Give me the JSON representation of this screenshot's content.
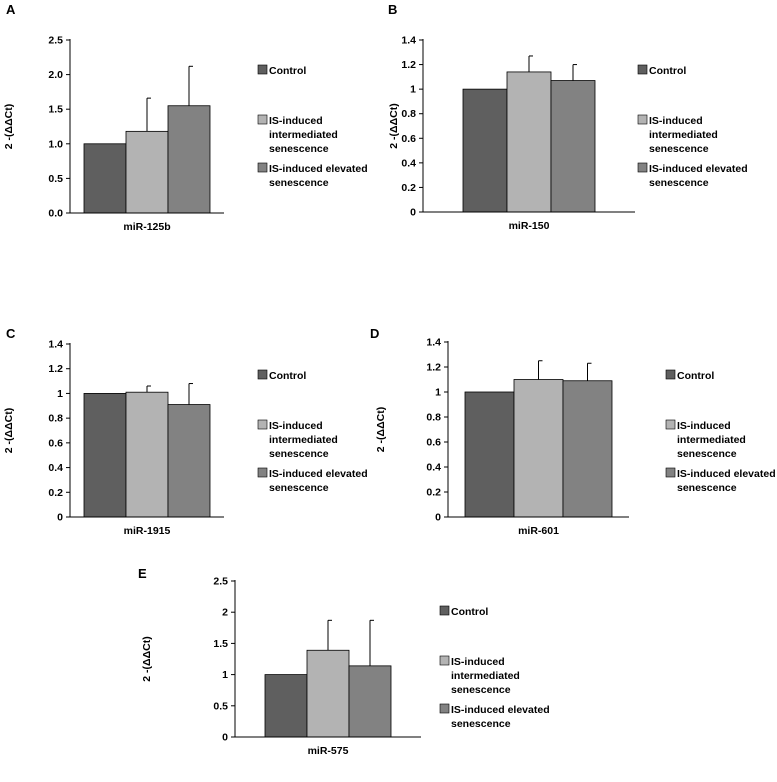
{
  "colors": {
    "control": "#5f5f5f",
    "intermediate": "#b3b3b3",
    "elevated": "#828282",
    "axis": "#000000",
    "bar_border": "#000000"
  },
  "legend": [
    {
      "key": "control",
      "lines": [
        "Control"
      ]
    },
    {
      "key": "intermediate",
      "lines": [
        " IS-induced",
        "intermediated",
        "senescence"
      ]
    },
    {
      "key": "elevated",
      "lines": [
        "IS-induced elevated",
        "senescence"
      ]
    }
  ],
  "chart_data": [
    {
      "panel": "A",
      "type": "bar",
      "category": "miR-125b",
      "ylabel": "2 -(ΔΔCt)",
      "ylim": [
        0,
        2.5
      ],
      "yticks": [
        "0.0",
        "0.5",
        "1.0",
        "1.5",
        "2.0",
        "2.5"
      ],
      "series": [
        {
          "name": "Control",
          "value": 1.0,
          "error": 0
        },
        {
          "name": "IS-induced intermediated senescence",
          "value": 1.18,
          "error": 0.48
        },
        {
          "name": "IS-induced elevated senescence",
          "value": 1.55,
          "error": 0.57
        }
      ]
    },
    {
      "panel": "B",
      "type": "bar",
      "category": "miR-150",
      "ylabel": "2 -(ΔΔCt)",
      "ylim": [
        0,
        1.4
      ],
      "yticks": [
        "0",
        "0.2",
        "0.4",
        "0.6",
        "0.8",
        "1",
        "1.2",
        "1.4"
      ],
      "series": [
        {
          "name": "Control",
          "value": 1.0,
          "error": 0
        },
        {
          "name": "IS-induced intermediated senescence",
          "value": 1.14,
          "error": 0.13
        },
        {
          "name": "IS-induced elevated senescence",
          "value": 1.07,
          "error": 0.13
        }
      ]
    },
    {
      "panel": "C",
      "type": "bar",
      "category": "miR-1915",
      "ylabel": "2 -(ΔΔCt)",
      "ylim": [
        0,
        1.4
      ],
      "yticks": [
        "0",
        "0.2",
        "0.4",
        "0.6",
        "0.8",
        "1",
        "1.2",
        "1.4"
      ],
      "series": [
        {
          "name": "Control",
          "value": 1.0,
          "error": 0
        },
        {
          "name": "IS-induced intermediated senescence",
          "value": 1.01,
          "error": 0.05
        },
        {
          "name": "IS-induced elevated senescence",
          "value": 0.91,
          "error": 0.17
        }
      ]
    },
    {
      "panel": "D",
      "type": "bar",
      "category": "miR-601",
      "ylabel": "2 -(ΔΔCt)",
      "ylim": [
        0,
        1.4
      ],
      "yticks": [
        "0",
        "0.2",
        "0.4",
        "0.6",
        "0.8",
        "1",
        "1.2",
        "1.4"
      ],
      "series": [
        {
          "name": "Control",
          "value": 1.0,
          "error": 0
        },
        {
          "name": "IS-induced intermediated senescence",
          "value": 1.1,
          "error": 0.15
        },
        {
          "name": "IS-induced elevated senescence",
          "value": 1.09,
          "error": 0.14
        }
      ]
    },
    {
      "panel": "E",
      "type": "bar",
      "category": "miR-575",
      "ylabel": "2 -(ΔΔCt)",
      "ylim": [
        0,
        2.5
      ],
      "yticks": [
        "0",
        "0.5",
        "1",
        "1.5",
        "2",
        "2.5"
      ],
      "series": [
        {
          "name": "Control",
          "value": 1.0,
          "error": 0
        },
        {
          "name": "IS-induced intermediated senescence",
          "value": 1.39,
          "error": 0.48
        },
        {
          "name": "IS-induced elevated senescence",
          "value": 1.14,
          "error": 0.73
        }
      ]
    }
  ]
}
